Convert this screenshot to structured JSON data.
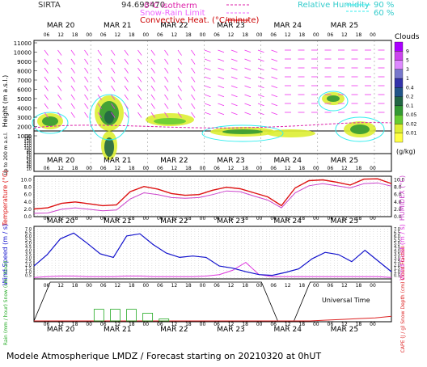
{
  "header": {
    "station": "SIRTA",
    "coords": "94.693470",
    "legend_isotherm": "0°C isotherm",
    "legend_snow_rain": "Snow-Rain Limit",
    "legend_convective": "Convective Heat. (°C/minute)",
    "legend_rh": "Relative Humidity",
    "rh_90": "90 %",
    "rh_60": "60 %"
  },
  "footer": {
    "title": "Modele Atmospherique LMDZ / Forecast starting on 20210320 at 0hUT"
  },
  "colors": {
    "isotherm": "#dd22aa",
    "snow_rain": "#ee66ff",
    "convective": "#cc0000",
    "rh": "#33eeee",
    "wind": "#ee33ee",
    "temperature": "#dd1111",
    "humidex": "#cc44cc",
    "wind_speed": "#1111cc",
    "wind_gust": "#dd33dd",
    "rain": "#22aa22",
    "snow": "#2222cc",
    "cape": "#dd2222",
    "cloud_fraction": "#000000"
  },
  "chart_data": [
    {
      "type": "heatmap",
      "panel": "clouds",
      "ylabel": "Height (m a.s.l.)",
      "ylabel2": "Up to 200 m a.s.l.",
      "yticks": [
        "1000",
        "2000",
        "3000",
        "4000",
        "5000",
        "6000",
        "7000",
        "8000",
        "9000",
        "10000",
        "11000"
      ],
      "yticks_low": [
        "10",
        "20",
        "30",
        "40",
        "50",
        "60",
        "70",
        "80",
        "90",
        "100",
        "110",
        "120",
        "130",
        "140",
        "150"
      ],
      "colorbar": {
        "title": "Clouds",
        "unit": "(g/kg)",
        "labels": [
          "9",
          "5",
          "3",
          "1",
          "0.4",
          "0.2",
          "0.1",
          "0.05",
          "0.02",
          "0.01"
        ],
        "colors": [
          "#aa00ff",
          "#cc44ee",
          "#dd88ff",
          "#7777cc",
          "#3333aa",
          "#225588",
          "#226644",
          "#339933",
          "#66cc33",
          "#ddee33",
          "#ffff44"
        ]
      },
      "days": [
        "MAR 20",
        "MAR 21",
        "MAR 22",
        "MAR 23",
        "MAR 24",
        "MAR 25"
      ],
      "hours": [
        "06",
        "12",
        "18",
        "00"
      ]
    },
    {
      "type": "line",
      "panel": "temperature",
      "ylabel": "Temperature (°C)",
      "ylabel2": "HUMIDEX (°C)",
      "yticks": [
        "0.0",
        "2.0",
        "4.0",
        "6.0",
        "8.0",
        "10.0"
      ],
      "ylim": [
        0,
        11
      ],
      "series": [
        {
          "name": "Temperature",
          "values": [
            2.1,
            2.4,
            3.6,
            4.0,
            3.5,
            3.0,
            3.2,
            6.8,
            8.2,
            7.5,
            6.3,
            5.8,
            6.0,
            7.2,
            8.0,
            7.6,
            6.5,
            5.4,
            3.0,
            7.8,
            9.8,
            10.0,
            9.4,
            8.6,
            10.2,
            10.3,
            9.0
          ]
        },
        {
          "name": "HUMIDEX",
          "values": [
            0.9,
            1.0,
            2.0,
            2.4,
            2.0,
            1.6,
            1.8,
            4.8,
            6.5,
            6.0,
            5.2,
            5.0,
            5.2,
            6.0,
            7.0,
            6.8,
            5.6,
            4.5,
            2.4,
            6.5,
            8.4,
            9.0,
            8.4,
            7.8,
            9.0,
            9.2,
            8.3
          ]
        }
      ]
    },
    {
      "type": "line",
      "panel": "wind",
      "ylabel": "Wind Speed (m / s)",
      "ylabel2": "Wind Gust (m / s)",
      "yticks": [
        "0.5",
        "1.0",
        "1.5",
        "2.0",
        "2.5",
        "3.0",
        "3.5",
        "4.0",
        "4.5",
        "5.0",
        "5.5",
        "6.0",
        "6.5",
        "7.0"
      ],
      "ylim": [
        0,
        7
      ],
      "series": [
        {
          "name": "Wind Speed",
          "values": [
            1.8,
            3.4,
            5.6,
            6.4,
            5.0,
            3.5,
            3.0,
            6.0,
            6.3,
            4.8,
            3.6,
            3.0,
            3.2,
            3.0,
            1.8,
            1.5,
            1.0,
            0.6,
            0.5,
            0.9,
            1.4,
            2.8,
            3.7,
            3.4,
            2.4,
            4.0,
            2.5,
            1.0
          ]
        },
        {
          "name": "Wind Gust",
          "values": [
            0.2,
            0.3,
            0.4,
            0.4,
            0.3,
            0.3,
            0.3,
            0.4,
            0.4,
            0.3,
            0.3,
            0.3,
            0.3,
            0.4,
            0.6,
            1.2,
            2.3,
            0.6,
            0.3,
            0.3,
            0.3,
            0.3,
            0.3,
            0.3,
            0.3,
            0.3,
            0.3,
            0.2
          ]
        }
      ]
    },
    {
      "type": "line",
      "panel": "precipitation",
      "ylabel": "Rain (mm / hour) Snow (cm / hour)",
      "ylabel2": "CAPE (J / g) Snow Depth (cm) Cloud Fraction",
      "xlabel": "Universal Time",
      "series": [
        {
          "name": "Cloud Fraction",
          "values": [
            0.0,
            1.0,
            1.0,
            1.0,
            1.0,
            1.0,
            1.0,
            1.0,
            1.0,
            1.0,
            1.0,
            1.0,
            1.0,
            1.0,
            1.0,
            0.0,
            0.0,
            1.0,
            1.0,
            1.0,
            1.0,
            1.0,
            1.0
          ]
        },
        {
          "name": "Rain",
          "values": [
            0.0,
            0.0,
            0.0,
            0.0,
            0.3,
            0.3,
            0.3,
            0.2,
            0.05,
            0.0,
            0.0,
            0.0,
            0.0,
            0.0,
            0.0,
            0.0,
            0.0,
            0.0,
            0.0,
            0.0,
            0.0,
            0.0,
            0.0
          ]
        },
        {
          "name": "CAPE",
          "values": [
            0.0,
            0.0,
            0.0,
            0.0,
            0.0,
            0.0,
            0.0,
            0.0,
            0.0,
            0.0,
            0.0,
            0.0,
            0.0,
            0.0,
            0.0,
            0.0,
            0.0,
            0.0,
            0.02,
            0.04,
            0.06,
            0.08,
            0.12
          ]
        }
      ]
    }
  ]
}
